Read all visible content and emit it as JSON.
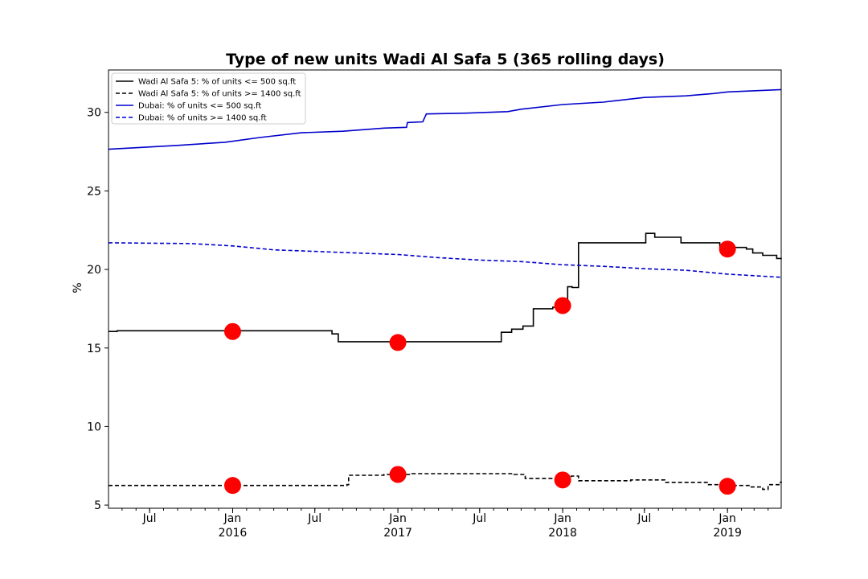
{
  "chart_data": {
    "type": "line",
    "title": "Type of new units Wadi Al Safa 5 (365 rolling days)",
    "xlabel": "",
    "ylabel": "%",
    "xlim": [
      "2015-04-01",
      "2019-04-30"
    ],
    "ylim": [
      4.8,
      32.7
    ],
    "grid": false,
    "legend_position": "top-left",
    "y_ticks": [
      5,
      10,
      15,
      20,
      25,
      30
    ],
    "x_ticks": [
      {
        "date": "2015-07-01",
        "label": "Jul",
        "year": ""
      },
      {
        "date": "2016-01-01",
        "label": "Jan",
        "year": "2016"
      },
      {
        "date": "2016-07-01",
        "label": "Jul",
        "year": ""
      },
      {
        "date": "2017-01-01",
        "label": "Jan",
        "year": "2017"
      },
      {
        "date": "2017-07-01",
        "label": "Jul",
        "year": ""
      },
      {
        "date": "2018-01-01",
        "label": "Jan",
        "year": "2018"
      },
      {
        "date": "2018-07-01",
        "label": "Jul",
        "year": ""
      },
      {
        "date": "2019-01-01",
        "label": "Jan",
        "year": "2019"
      }
    ],
    "series": [
      {
        "name": "Wadi Al Safa 5: % of units <= 500 sq.ft",
        "color": "#000000",
        "style": "solid",
        "step": true,
        "points": [
          [
            "2015-04-01",
            16.05
          ],
          [
            "2015-04-20",
            16.1
          ],
          [
            "2016-08-01",
            16.1
          ],
          [
            "2016-08-08",
            15.9
          ],
          [
            "2016-08-22",
            15.4
          ],
          [
            "2017-08-15",
            15.4
          ],
          [
            "2017-08-18",
            16.0
          ],
          [
            "2017-09-10",
            16.2
          ],
          [
            "2017-10-05",
            16.4
          ],
          [
            "2017-10-28",
            17.5
          ],
          [
            "2017-12-10",
            17.6
          ],
          [
            "2017-12-22",
            17.8
          ],
          [
            "2018-01-12",
            18.9
          ],
          [
            "2018-01-22",
            18.85
          ],
          [
            "2018-02-05",
            21.7
          ],
          [
            "2018-07-01",
            21.7
          ],
          [
            "2018-07-04",
            22.3
          ],
          [
            "2018-07-24",
            22.05
          ],
          [
            "2018-09-20",
            21.7
          ],
          [
            "2018-12-15",
            21.4
          ],
          [
            "2019-02-12",
            21.3
          ],
          [
            "2019-02-26",
            21.05
          ],
          [
            "2019-03-20",
            20.9
          ],
          [
            "2019-04-20",
            20.7
          ],
          [
            "2019-04-30",
            20.65
          ]
        ]
      },
      {
        "name": "Wadi Al Safa 5: % of units >= 1400 sq.ft",
        "color": "#000000",
        "style": "dashed",
        "step": true,
        "points": [
          [
            "2015-04-01",
            6.25
          ],
          [
            "2016-09-10",
            6.3
          ],
          [
            "2016-09-14",
            6.9
          ],
          [
            "2016-12-01",
            6.95
          ],
          [
            "2017-02-01",
            7.0
          ],
          [
            "2017-09-15",
            6.95
          ],
          [
            "2017-10-10",
            6.7
          ],
          [
            "2018-01-01",
            6.65
          ],
          [
            "2018-01-20",
            6.85
          ],
          [
            "2018-02-05",
            6.55
          ],
          [
            "2018-06-01",
            6.6
          ],
          [
            "2018-08-15",
            6.45
          ],
          [
            "2018-11-20",
            6.3
          ],
          [
            "2019-01-15",
            6.25
          ],
          [
            "2019-02-20",
            6.15
          ],
          [
            "2019-03-20",
            6.0
          ],
          [
            "2019-04-01",
            6.3
          ],
          [
            "2019-04-25",
            6.45
          ],
          [
            "2019-04-30",
            6.5
          ]
        ]
      },
      {
        "name": "Dubai: % of units <= 500 sq.ft",
        "color": "#0000cc",
        "style": "solid",
        "step": false,
        "points": [
          [
            "2015-04-01",
            27.65
          ],
          [
            "2015-06-01",
            27.75
          ],
          [
            "2015-09-01",
            27.9
          ],
          [
            "2015-12-15",
            28.1
          ],
          [
            "2016-03-01",
            28.4
          ],
          [
            "2016-06-01",
            28.7
          ],
          [
            "2016-09-01",
            28.8
          ],
          [
            "2016-12-01",
            29.0
          ],
          [
            "2017-01-20",
            29.05
          ],
          [
            "2017-01-22",
            29.35
          ],
          [
            "2017-02-25",
            29.4
          ],
          [
            "2017-03-05",
            29.9
          ],
          [
            "2017-06-01",
            29.95
          ],
          [
            "2017-09-01",
            30.05
          ],
          [
            "2017-10-01",
            30.2
          ],
          [
            "2018-01-01",
            30.5
          ],
          [
            "2018-04-01",
            30.65
          ],
          [
            "2018-07-01",
            30.95
          ],
          [
            "2018-10-01",
            31.05
          ],
          [
            "2018-12-01",
            31.2
          ],
          [
            "2019-01-01",
            31.3
          ],
          [
            "2019-04-30",
            31.45
          ]
        ]
      },
      {
        "name": "Dubai: % of units >= 1400 sq.ft",
        "color": "#0000cc",
        "style": "dashed",
        "step": false,
        "points": [
          [
            "2015-04-01",
            21.7
          ],
          [
            "2015-10-01",
            21.65
          ],
          [
            "2016-01-01",
            21.5
          ],
          [
            "2016-04-01",
            21.25
          ],
          [
            "2016-07-01",
            21.15
          ],
          [
            "2016-10-01",
            21.05
          ],
          [
            "2017-01-01",
            20.95
          ],
          [
            "2017-04-01",
            20.75
          ],
          [
            "2017-07-01",
            20.6
          ],
          [
            "2017-10-01",
            20.5
          ],
          [
            "2018-01-01",
            20.3
          ],
          [
            "2018-04-01",
            20.2
          ],
          [
            "2018-07-01",
            20.05
          ],
          [
            "2018-10-01",
            19.95
          ],
          [
            "2019-01-01",
            19.7
          ],
          [
            "2019-04-30",
            19.5
          ]
        ]
      }
    ],
    "markers": {
      "color": "#ff0000",
      "points": [
        [
          "2016-01-01",
          16.05
        ],
        [
          "2016-01-01",
          6.25
        ],
        [
          "2017-01-01",
          15.35
        ],
        [
          "2017-01-01",
          6.95
        ],
        [
          "2018-01-01",
          17.7
        ],
        [
          "2018-01-01",
          6.6
        ],
        [
          "2019-01-01",
          21.3
        ],
        [
          "2019-01-01",
          6.2
        ]
      ]
    }
  }
}
